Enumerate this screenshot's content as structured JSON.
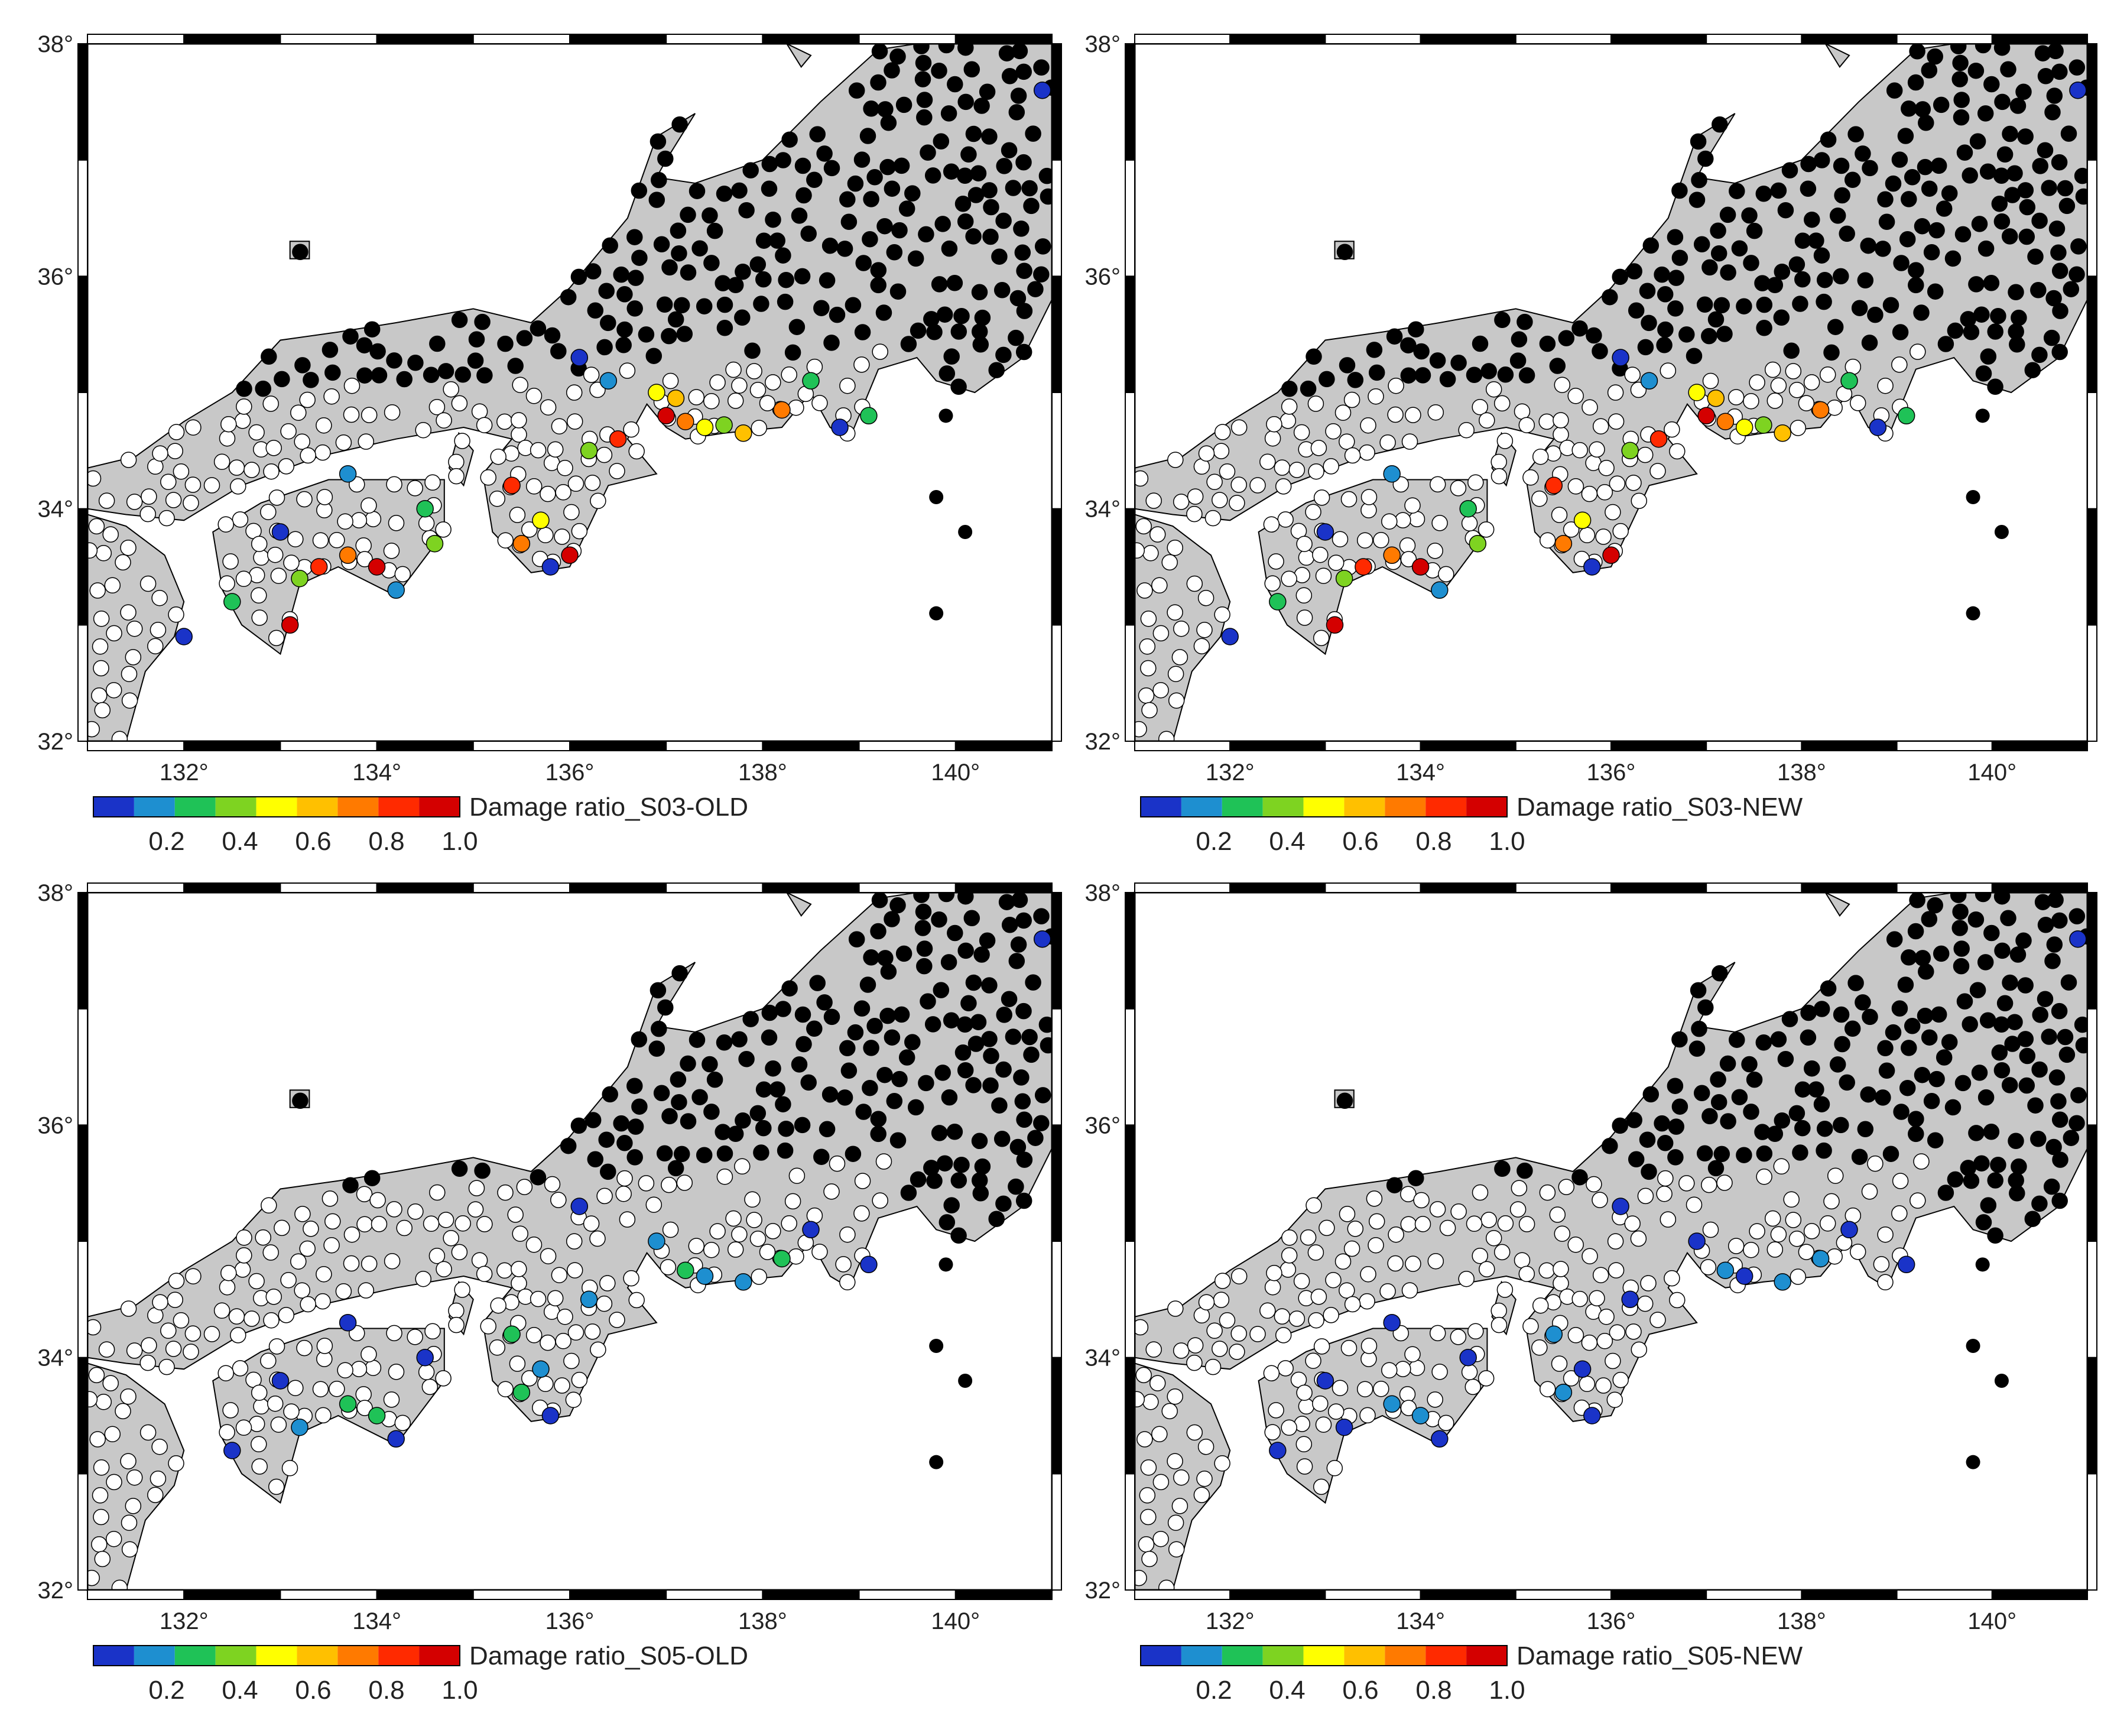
{
  "figure": {
    "lat_range": [
      32,
      38
    ],
    "lon_range": [
      131,
      141
    ],
    "lat_ticks": [
      32,
      34,
      36,
      38
    ],
    "lat_tick_labels": [
      "32°",
      "34°",
      "36°",
      "38°"
    ],
    "lon_ticks": [
      132,
      134,
      136,
      138,
      140
    ],
    "lon_tick_labels": [
      "132°",
      "134°",
      "136°",
      "138°",
      "140°"
    ],
    "colors": {
      "land": "#c8c8c8",
      "coast": "#000000",
      "no_data_dot": "#000000",
      "zero_dot": "#ffffff"
    },
    "colorbar": {
      "tick_labels": [
        "0.2",
        "0.4",
        "0.6",
        "0.8",
        "1.0"
      ],
      "colors": [
        "#1a33c8",
        "#1e8fd0",
        "#1fc257",
        "#7ed321",
        "#ffff00",
        "#ffc000",
        "#ff7a00",
        "#ff2a00",
        "#d40000"
      ]
    }
  },
  "panels": [
    {
      "id": "s03-old",
      "label": "Damage ratio_S03-OLD",
      "intensity": 1.0
    },
    {
      "id": "s03-new",
      "label": "Damage ratio_S03-NEW",
      "intensity": 1.0
    },
    {
      "id": "s05-old",
      "label": "Damage ratio_S05-OLD",
      "intensity": 0.35
    },
    {
      "id": "s05-new",
      "label": "Damage ratio_S05-NEW",
      "intensity": 0.2
    }
  ],
  "stations": [
    {
      "lon": 137.0,
      "lat": 34.8,
      "ratio": 0.9
    },
    {
      "lon": 137.2,
      "lat": 34.75,
      "ratio": 0.7
    },
    {
      "lon": 137.4,
      "lat": 34.7,
      "ratio": 0.5
    },
    {
      "lon": 137.6,
      "lat": 34.72,
      "ratio": 0.4
    },
    {
      "lon": 137.8,
      "lat": 34.65,
      "ratio": 0.6
    },
    {
      "lon": 136.9,
      "lat": 35.0,
      "ratio": 0.55
    },
    {
      "lon": 137.1,
      "lat": 34.95,
      "ratio": 0.65
    },
    {
      "lon": 138.2,
      "lat": 34.85,
      "ratio": 0.75
    },
    {
      "lon": 138.5,
      "lat": 35.1,
      "ratio": 0.3
    },
    {
      "lon": 136.5,
      "lat": 34.6,
      "ratio": 0.8
    },
    {
      "lon": 136.2,
      "lat": 34.5,
      "ratio": 0.35
    },
    {
      "lon": 136.1,
      "lat": 35.3,
      "ratio": 0.1
    },
    {
      "lon": 136.4,
      "lat": 35.1,
      "ratio": 0.12
    },
    {
      "lon": 135.4,
      "lat": 34.2,
      "ratio": 0.85
    },
    {
      "lon": 135.7,
      "lat": 33.9,
      "ratio": 0.55
    },
    {
      "lon": 136.0,
      "lat": 33.6,
      "ratio": 0.9
    },
    {
      "lon": 135.8,
      "lat": 33.5,
      "ratio": 0.08
    },
    {
      "lon": 135.5,
      "lat": 33.7,
      "ratio": 0.7
    },
    {
      "lon": 133.4,
      "lat": 33.5,
      "ratio": 0.85
    },
    {
      "lon": 133.7,
      "lat": 33.6,
      "ratio": 0.75
    },
    {
      "lon": 134.0,
      "lat": 33.5,
      "ratio": 0.95
    },
    {
      "lon": 133.1,
      "lat": 33.0,
      "ratio": 0.9
    },
    {
      "lon": 132.5,
      "lat": 33.2,
      "ratio": 0.3
    },
    {
      "lon": 133.2,
      "lat": 33.4,
      "ratio": 0.35
    },
    {
      "lon": 134.6,
      "lat": 33.7,
      "ratio": 0.4
    },
    {
      "lon": 134.5,
      "lat": 34.0,
      "ratio": 0.3
    },
    {
      "lon": 133.7,
      "lat": 34.3,
      "ratio": 0.15
    },
    {
      "lon": 132.0,
      "lat": 32.9,
      "ratio": 0.1
    },
    {
      "lon": 133.0,
      "lat": 33.8,
      "ratio": 0.1
    },
    {
      "lon": 134.2,
      "lat": 33.3,
      "ratio": 0.12
    },
    {
      "lon": 138.8,
      "lat": 34.7,
      "ratio": 0.1
    },
    {
      "lon": 139.1,
      "lat": 34.8,
      "ratio": 0.3
    },
    {
      "lon": 140.9,
      "lat": 37.6,
      "ratio": 0.1
    }
  ]
}
